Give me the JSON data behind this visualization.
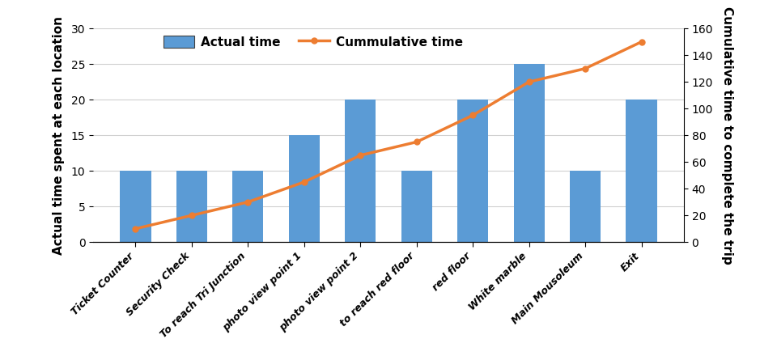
{
  "categories": [
    "Ticket Counter",
    "Security Check",
    "To reach Tri Junction",
    "photo view point 1",
    "photo view point 2",
    "to reach red floor",
    "red floor",
    "White marble",
    "Main Mousoleum",
    "Exit"
  ],
  "bar_values": [
    10,
    10,
    10,
    15,
    20,
    10,
    20,
    25,
    10,
    20
  ],
  "cumulative_values": [
    10,
    20,
    30,
    45,
    65,
    75,
    95,
    120,
    130,
    150
  ],
  "bar_color": "#5B9BD5",
  "line_color": "#ED7D31",
  "ylabel_left": "Actual time spent at each location",
  "ylabel_right": "Cumulative time to complete the trip",
  "ylim_left": [
    0,
    30
  ],
  "ylim_right": [
    0,
    160
  ],
  "yticks_left": [
    0,
    5,
    10,
    15,
    20,
    25,
    30
  ],
  "yticks_right": [
    0,
    20,
    40,
    60,
    80,
    100,
    120,
    140,
    160
  ],
  "legend_bar_label": "Actual time",
  "legend_line_label": "Cummulative time",
  "background_color": "#ffffff",
  "line_width": 2.5,
  "marker": "o",
  "marker_size": 5
}
